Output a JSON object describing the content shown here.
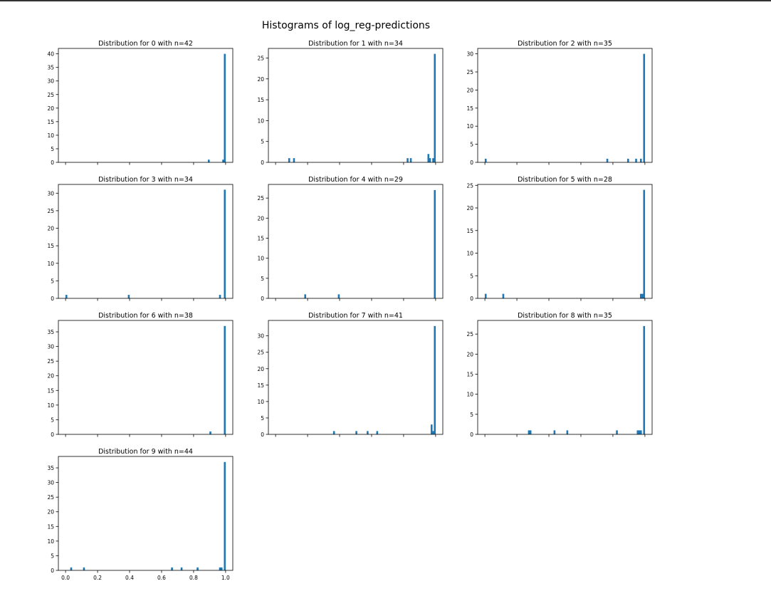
{
  "figure": {
    "suptitle": "Histograms of log_reg-predictions",
    "bar_color": "#1f77b4"
  },
  "chart_data": [
    {
      "type": "bar",
      "title": "Distribution for 0 with n=42",
      "xlim": [
        -0.045,
        1.045
      ],
      "ylim": [
        0,
        42
      ],
      "yticks": [
        0,
        5,
        10,
        15,
        20,
        25,
        30,
        35,
        40
      ],
      "xticks": [
        0.0,
        0.2,
        0.4,
        0.6,
        0.8,
        1.0
      ],
      "xtick_labels_visible": false,
      "bins": [
        {
          "x": 0.895,
          "count": 1
        },
        {
          "x": 0.985,
          "count": 1
        },
        {
          "x": 0.995,
          "count": 40
        }
      ]
    },
    {
      "type": "bar",
      "title": "Distribution for 1 with n=34",
      "xlim": [
        -0.045,
        1.045
      ],
      "ylim": [
        0,
        27.3
      ],
      "yticks": [
        0,
        5,
        10,
        15,
        20,
        25
      ],
      "xticks": [
        0.0,
        0.2,
        0.4,
        0.6,
        0.8,
        1.0
      ],
      "xtick_labels_visible": false,
      "bins": [
        {
          "x": 0.085,
          "count": 1
        },
        {
          "x": 0.115,
          "count": 1
        },
        {
          "x": 0.825,
          "count": 1
        },
        {
          "x": 0.845,
          "count": 1
        },
        {
          "x": 0.955,
          "count": 2
        },
        {
          "x": 0.965,
          "count": 1
        },
        {
          "x": 0.985,
          "count": 1
        },
        {
          "x": 0.995,
          "count": 26
        }
      ]
    },
    {
      "type": "bar",
      "title": "Distribution for 2 with n=35",
      "xlim": [
        -0.045,
        1.045
      ],
      "ylim": [
        0,
        31.5
      ],
      "yticks": [
        0,
        5,
        10,
        15,
        20,
        25,
        30
      ],
      "xticks": [
        0.0,
        0.2,
        0.4,
        0.6,
        0.8,
        1.0
      ],
      "xtick_labels_visible": false,
      "bins": [
        {
          "x": 0.005,
          "count": 1
        },
        {
          "x": 0.765,
          "count": 1
        },
        {
          "x": 0.895,
          "count": 1
        },
        {
          "x": 0.945,
          "count": 1
        },
        {
          "x": 0.975,
          "count": 1
        },
        {
          "x": 0.995,
          "count": 30
        }
      ]
    },
    {
      "type": "bar",
      "title": "Distribution for 3 with n=34",
      "xlim": [
        -0.045,
        1.045
      ],
      "ylim": [
        0,
        32.5
      ],
      "yticks": [
        0,
        5,
        10,
        15,
        20,
        25,
        30
      ],
      "xticks": [
        0.0,
        0.2,
        0.4,
        0.6,
        0.8,
        1.0
      ],
      "xtick_labels_visible": false,
      "bins": [
        {
          "x": 0.005,
          "count": 1
        },
        {
          "x": 0.395,
          "count": 1
        },
        {
          "x": 0.965,
          "count": 1
        },
        {
          "x": 0.995,
          "count": 31
        }
      ]
    },
    {
      "type": "bar",
      "title": "Distribution for 4 with n=29",
      "xlim": [
        -0.045,
        1.045
      ],
      "ylim": [
        0,
        28.4
      ],
      "yticks": [
        0,
        5,
        10,
        15,
        20,
        25
      ],
      "xticks": [
        0.0,
        0.2,
        0.4,
        0.6,
        0.8,
        1.0
      ],
      "xtick_labels_visible": false,
      "bins": [
        {
          "x": 0.185,
          "count": 1
        },
        {
          "x": 0.395,
          "count": 1
        },
        {
          "x": 0.995,
          "count": 27
        }
      ]
    },
    {
      "type": "bar",
      "title": "Distribution for 5 with n=28",
      "xlim": [
        -0.045,
        1.045
      ],
      "ylim": [
        0,
        25.2
      ],
      "yticks": [
        0,
        5,
        10,
        15,
        20,
        25
      ],
      "xticks": [
        0.0,
        0.2,
        0.4,
        0.6,
        0.8,
        1.0
      ],
      "xtick_labels_visible": false,
      "bins": [
        {
          "x": 0.005,
          "count": 1
        },
        {
          "x": 0.115,
          "count": 1
        },
        {
          "x": 0.975,
          "count": 1
        },
        {
          "x": 0.985,
          "count": 1
        },
        {
          "x": 0.995,
          "count": 24
        }
      ]
    },
    {
      "type": "bar",
      "title": "Distribution for 6 with n=38",
      "xlim": [
        -0.045,
        1.045
      ],
      "ylim": [
        0,
        38.9
      ],
      "yticks": [
        0,
        5,
        10,
        15,
        20,
        25,
        30,
        35
      ],
      "xticks": [
        0.0,
        0.2,
        0.4,
        0.6,
        0.8,
        1.0
      ],
      "xtick_labels_visible": false,
      "bins": [
        {
          "x": 0.905,
          "count": 1
        },
        {
          "x": 0.995,
          "count": 37
        }
      ]
    },
    {
      "type": "bar",
      "title": "Distribution for 7 with n=41",
      "xlim": [
        -0.045,
        1.045
      ],
      "ylim": [
        0,
        34.7
      ],
      "yticks": [
        0,
        5,
        10,
        15,
        20,
        25,
        30
      ],
      "xticks": [
        0.0,
        0.2,
        0.4,
        0.6,
        0.8,
        1.0
      ],
      "xtick_labels_visible": false,
      "bins": [
        {
          "x": 0.365,
          "count": 1
        },
        {
          "x": 0.505,
          "count": 1
        },
        {
          "x": 0.575,
          "count": 1
        },
        {
          "x": 0.635,
          "count": 1
        },
        {
          "x": 0.975,
          "count": 3
        },
        {
          "x": 0.985,
          "count": 1
        },
        {
          "x": 0.995,
          "count": 33
        }
      ]
    },
    {
      "type": "bar",
      "title": "Distribution for 8 with n=35",
      "xlim": [
        -0.045,
        1.045
      ],
      "ylim": [
        0,
        28.4
      ],
      "yticks": [
        0,
        5,
        10,
        15,
        20,
        25
      ],
      "xticks": [
        0.0,
        0.2,
        0.4,
        0.6,
        0.8,
        1.0
      ],
      "xtick_labels_visible": false,
      "bins": [
        {
          "x": 0.275,
          "count": 1
        },
        {
          "x": 0.285,
          "count": 1
        },
        {
          "x": 0.435,
          "count": 1
        },
        {
          "x": 0.515,
          "count": 1
        },
        {
          "x": 0.825,
          "count": 1
        },
        {
          "x": 0.955,
          "count": 1
        },
        {
          "x": 0.965,
          "count": 1
        },
        {
          "x": 0.975,
          "count": 1
        },
        {
          "x": 0.995,
          "count": 27
        }
      ]
    },
    {
      "type": "bar",
      "title": "Distribution for 9 with n=44",
      "xlim": [
        -0.045,
        1.045
      ],
      "ylim": [
        0,
        38.9
      ],
      "yticks": [
        0,
        5,
        10,
        15,
        20,
        25,
        30,
        35
      ],
      "xticks": [
        0.0,
        0.2,
        0.4,
        0.6,
        0.8,
        1.0
      ],
      "xtick_labels": [
        "0.0",
        "0.2",
        "0.4",
        "0.6",
        "0.8",
        "1.0"
      ],
      "xtick_labels_visible": true,
      "bins": [
        {
          "x": 0.035,
          "count": 1
        },
        {
          "x": 0.115,
          "count": 1
        },
        {
          "x": 0.665,
          "count": 1
        },
        {
          "x": 0.725,
          "count": 1
        },
        {
          "x": 0.825,
          "count": 1
        },
        {
          "x": 0.965,
          "count": 1
        },
        {
          "x": 0.975,
          "count": 1
        },
        {
          "x": 0.995,
          "count": 37
        }
      ]
    }
  ]
}
